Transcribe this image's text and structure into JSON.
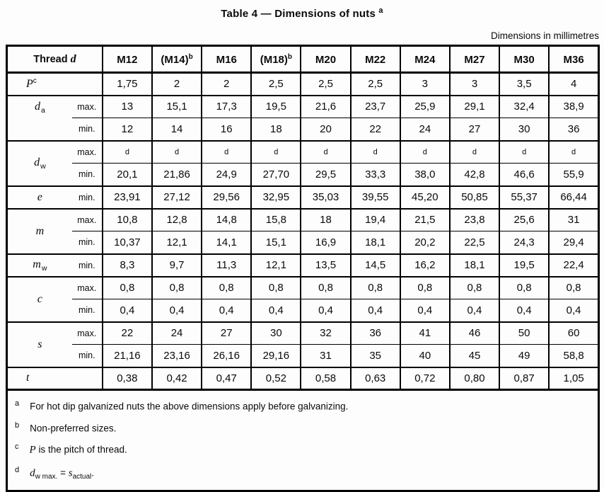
{
  "title": "Table 4 — Dimensions of nuts",
  "title_ref": "a",
  "units_note": "Dimensions in millimetres",
  "header": {
    "corner_label": "Thread",
    "corner_symbol": "d",
    "cols": [
      {
        "text": "M12"
      },
      {
        "text": "(M14)",
        "sup": "b"
      },
      {
        "text": "M16"
      },
      {
        "text": "(M18)",
        "sup": "b"
      },
      {
        "text": "M20"
      },
      {
        "text": "M22"
      },
      {
        "text": "M24"
      },
      {
        "text": "M27"
      },
      {
        "text": "M30"
      },
      {
        "text": "M36"
      }
    ]
  },
  "rows": [
    {
      "symbol": "P",
      "sup": "c",
      "qualifier": "",
      "values": [
        "1,75",
        "2",
        "2",
        "2,5",
        "2,5",
        "2,5",
        "3",
        "3",
        "3,5",
        "4"
      ]
    },
    {
      "symbol": "d",
      "sub": "a",
      "qualifier": "max.",
      "values": [
        "13",
        "15,1",
        "17,3",
        "19,5",
        "21,6",
        "23,7",
        "25,9",
        "29,1",
        "32,4",
        "38,9"
      ]
    },
    {
      "qualifier": "min.",
      "values": [
        "12",
        "14",
        "16",
        "18",
        "20",
        "22",
        "24",
        "27",
        "30",
        "36"
      ]
    },
    {
      "symbol": "d",
      "sub": "w",
      "qualifier": "max.",
      "values": [
        "d",
        "d",
        "d",
        "d",
        "d",
        "d",
        "d",
        "d",
        "d",
        "d"
      ]
    },
    {
      "qualifier": "min.",
      "values": [
        "20,1",
        "21,86",
        "24,9",
        "27,70",
        "29,5",
        "33,3",
        "38,0",
        "42,8",
        "46,6",
        "55,9"
      ]
    },
    {
      "symbol": "e",
      "qualifier": "min.",
      "values": [
        "23,91",
        "27,12",
        "29,56",
        "32,95",
        "35,03",
        "39,55",
        "45,20",
        "50,85",
        "55,37",
        "66,44"
      ]
    },
    {
      "symbol": "m",
      "qualifier": "max.",
      "values": [
        "10,8",
        "12,8",
        "14,8",
        "15,8",
        "18",
        "19,4",
        "21,5",
        "23,8",
        "25,6",
        "31"
      ]
    },
    {
      "qualifier": "min.",
      "values": [
        "10,37",
        "12,1",
        "14,1",
        "15,1",
        "16,9",
        "18,1",
        "20,2",
        "22,5",
        "24,3",
        "29,4"
      ]
    },
    {
      "symbol": "m",
      "sub": "w",
      "qualifier": "min.",
      "values": [
        "8,3",
        "9,7",
        "11,3",
        "12,1",
        "13,5",
        "14,5",
        "16,2",
        "18,1",
        "19,5",
        "22,4"
      ]
    },
    {
      "symbol": "c",
      "qualifier": "max.",
      "values": [
        "0,8",
        "0,8",
        "0,8",
        "0,8",
        "0,8",
        "0,8",
        "0,8",
        "0,8",
        "0,8",
        "0,8"
      ]
    },
    {
      "qualifier": "min.",
      "values": [
        "0,4",
        "0,4",
        "0,4",
        "0,4",
        "0,4",
        "0,4",
        "0,4",
        "0,4",
        "0,4",
        "0,4"
      ]
    },
    {
      "symbol": "s",
      "qualifier": "max.",
      "values": [
        "22",
        "24",
        "27",
        "30",
        "32",
        "36",
        "41",
        "46",
        "50",
        "60"
      ]
    },
    {
      "qualifier": "min.",
      "values": [
        "21,16",
        "23,16",
        "26,16",
        "29,16",
        "31",
        "35",
        "40",
        "45",
        "49",
        "58,8"
      ]
    },
    {
      "symbol": "t",
      "qualifier": "",
      "values": [
        "0,38",
        "0,42",
        "0,47",
        "0,52",
        "0,58",
        "0,63",
        "0,72",
        "0,80",
        "0,87",
        "1,05"
      ]
    }
  ],
  "footnotes": [
    {
      "ref": "a",
      "text": "For hot dip galvanized nuts the above dimensions apply before galvanizing."
    },
    {
      "ref": "b",
      "text": "Non-preferred sizes."
    },
    {
      "ref": "c",
      "symbol": "P",
      "text": "is the pitch of thread."
    },
    {
      "ref": "d",
      "sym1": "d",
      "sub1": "w max.",
      "eq": "=",
      "sym2": "s",
      "sub2": "actual",
      "tail": "."
    }
  ]
}
